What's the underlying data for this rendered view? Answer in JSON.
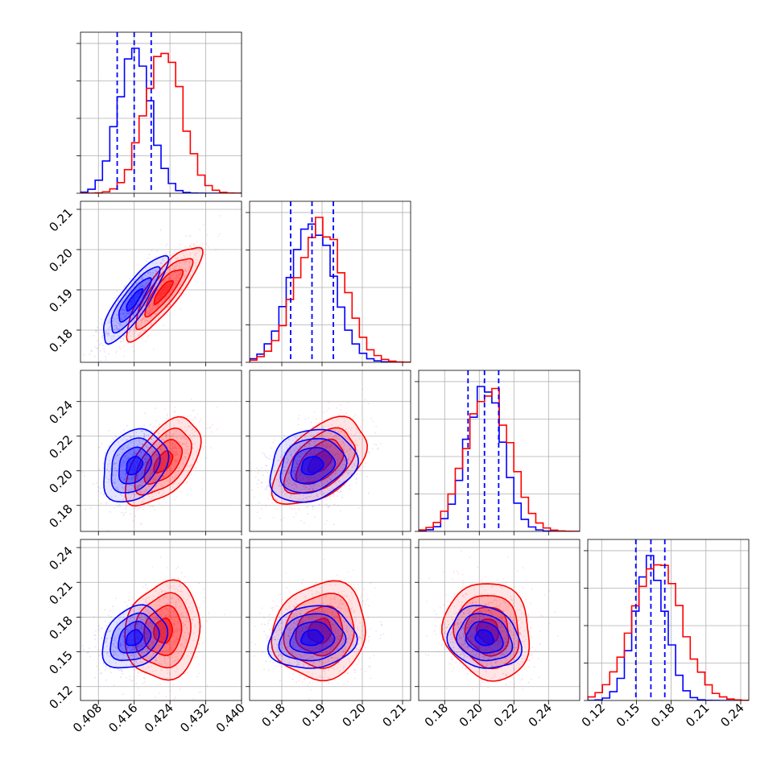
{
  "colors": {
    "series_a": "#0000ff",
    "series_b": "#ff0000",
    "grid": "#b0b0b0"
  },
  "chart_data": {
    "type": "corner",
    "grid": true,
    "parameters": [
      {
        "range": [
          0.404,
          0.44
        ],
        "ticks": [
          0.408,
          0.416,
          0.424,
          0.432,
          0.44
        ],
        "tick_labels": [
          "0.408",
          "0.416",
          "0.424",
          "0.432",
          "0.440"
        ]
      },
      {
        "range": [
          0.172,
          0.212
        ],
        "ticks": [
          0.18,
          0.19,
          0.2,
          0.21
        ],
        "tick_labels": [
          "0.18",
          "0.19",
          "0.20",
          "0.21"
        ]
      },
      {
        "range": [
          0.165,
          0.258
        ],
        "ticks": [
          0.18,
          0.2,
          0.22,
          0.24
        ],
        "tick_labels": [
          "0.18",
          "0.20",
          "0.22",
          "0.24"
        ]
      },
      {
        "range": [
          0.108,
          0.247
        ],
        "ticks": [
          0.12,
          0.15,
          0.18,
          0.21,
          0.24
        ],
        "tick_labels": [
          "0.12",
          "0.15",
          "0.18",
          "0.21",
          "0.24"
        ]
      }
    ],
    "series": [
      {
        "color": "#0000ff",
        "means": [
          0.416,
          0.1875,
          0.203,
          0.162
        ],
        "sds": [
          0.0036,
          0.0054,
          0.0105,
          0.0135
        ],
        "quantile_lines": [
          [
            0.4122,
            0.416,
            0.4198
          ],
          [
            0.1822,
            0.1875,
            0.1928
          ],
          [
            0.1935,
            0.203,
            0.2112
          ],
          [
            0.1495,
            0.1625,
            0.1745
          ]
        ]
      },
      {
        "color": "#ff0000",
        "means": [
          0.4225,
          0.1895,
          0.205,
          0.168
        ],
        "sds": [
          0.0042,
          0.0058,
          0.0125,
          0.021
        ],
        "quantile_lines": []
      }
    ],
    "correlations": [
      {
        "pair": [
          0,
          1
        ],
        "series_a": 0.85,
        "series_b": 0.85
      },
      {
        "pair": [
          0,
          2
        ],
        "series_a": 0.25,
        "series_b": 0.55
      },
      {
        "pair": [
          1,
          2
        ],
        "series_a": 0.2,
        "series_b": 0.5
      },
      {
        "pair": [
          0,
          3
        ],
        "series_a": 0.25,
        "series_b": 0.1
      },
      {
        "pair": [
          1,
          3
        ],
        "series_a": 0.1,
        "series_b": 0.1
      },
      {
        "pair": [
          2,
          3
        ],
        "series_a": -0.15,
        "series_b": -0.1
      }
    ],
    "contour_levels_sigma": [
      0.5,
      1.0,
      1.5,
      2.0
    ]
  }
}
